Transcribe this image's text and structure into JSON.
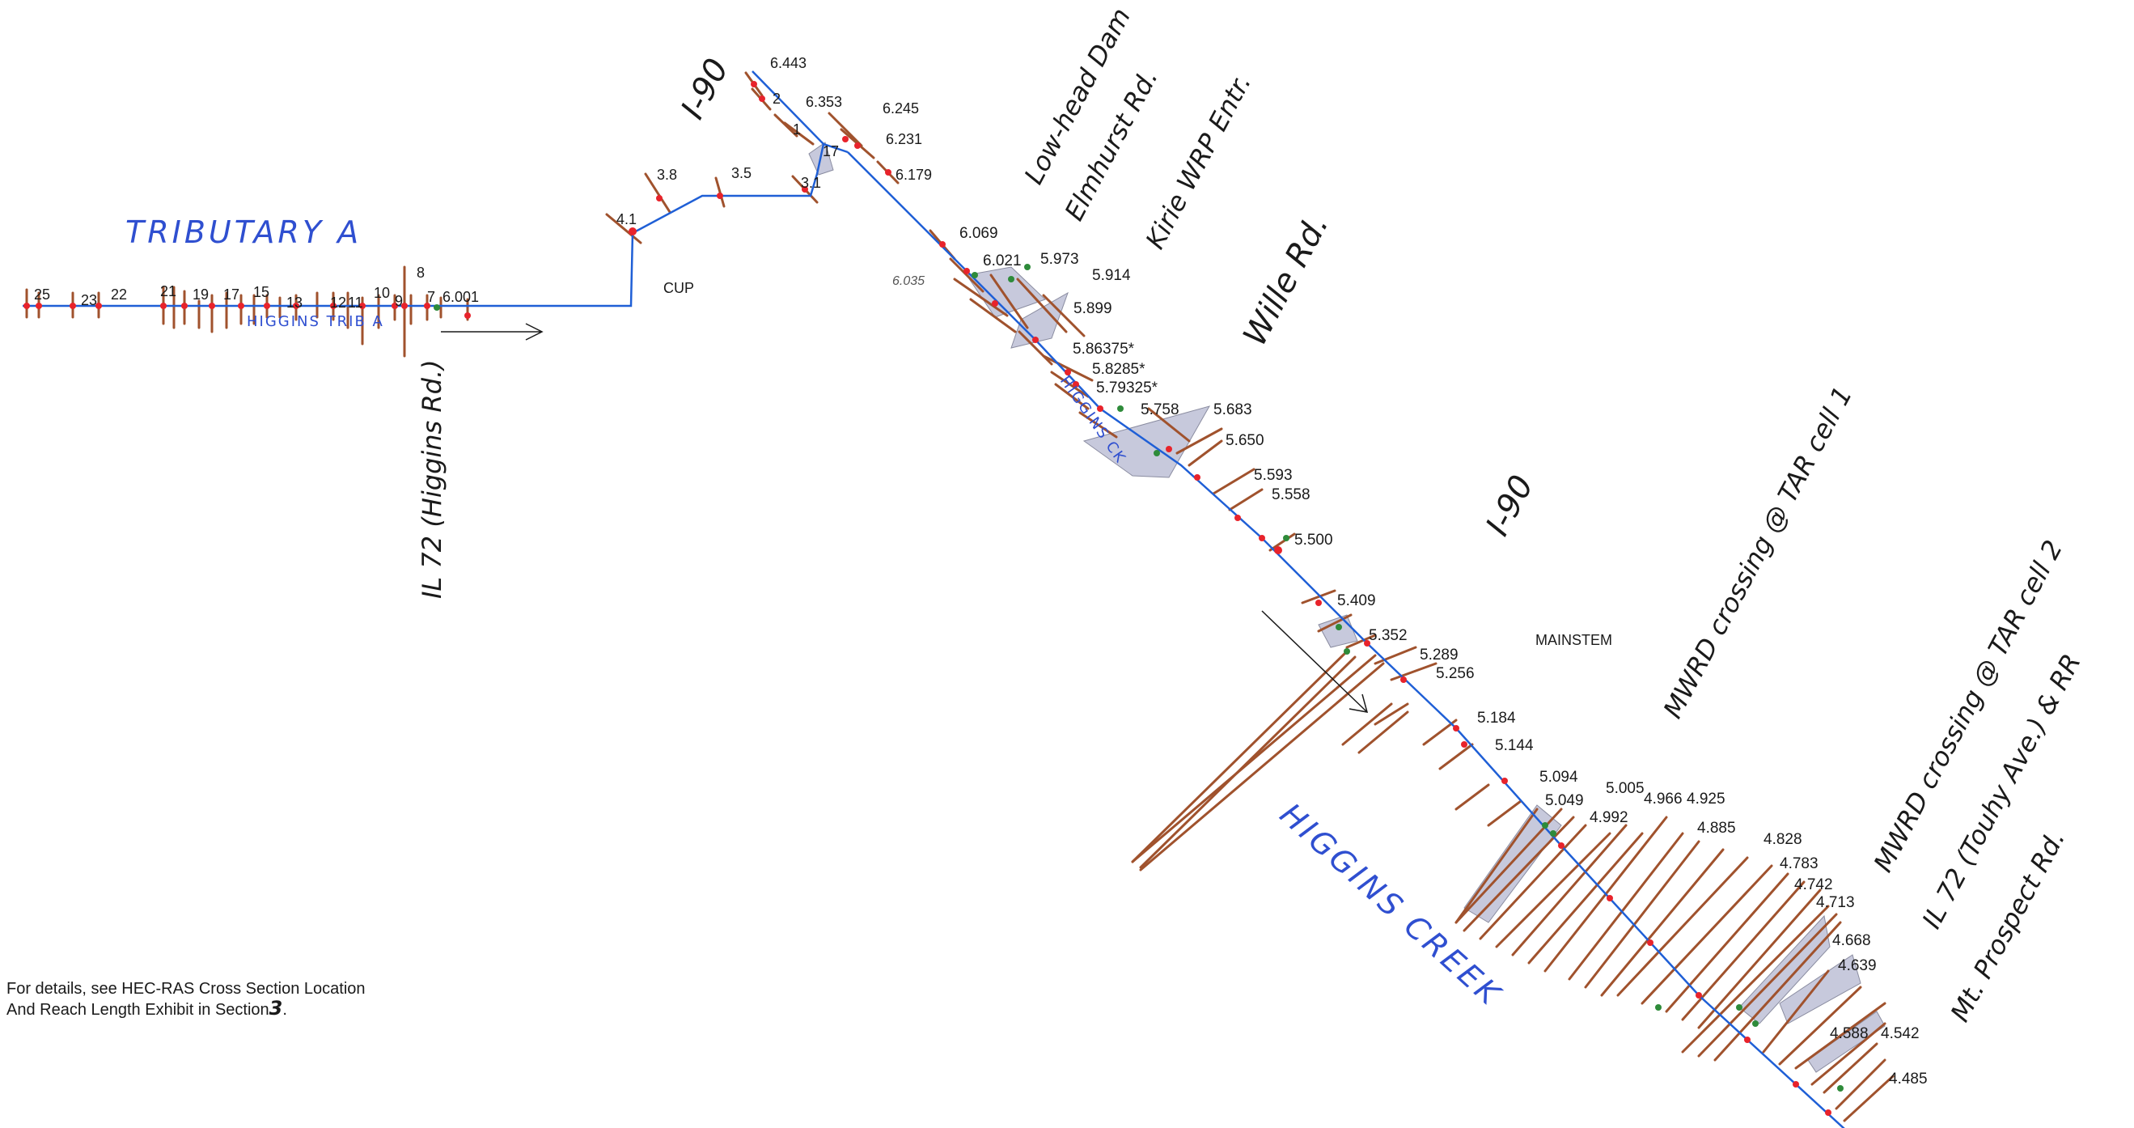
{
  "reaches": {
    "tributary_handwritten": "TRIBUTARY   A",
    "higgins_trib": "HIGGINS TRIB A",
    "higgins_ck": "HIGGINS CK",
    "higgins_creek_handwritten": "HIGGINS CREEK",
    "cup": "CUP",
    "mainstem": "MAINSTEM"
  },
  "crossings": {
    "il72_higgins": "IL 72 (Higgins Rd.)",
    "i90_upper": "I-90",
    "low_head_dam": "Low-head Dam",
    "elmhurst": "Elmhurst Rd.",
    "kirie": "Kirie WRP Entr.",
    "wille": "Wille Rd.",
    "i90_lower": "I-90",
    "mwrd1": "MWRD crossing @ TAR cell 1",
    "mwrd2": "MWRD crossing @ TAR cell 2",
    "il72_touhy": "IL 72 (Touhy Ave.) & RR",
    "mt_prospect": "Mt. Prospect Rd."
  },
  "trib_stations": [
    "25",
    "23",
    "22",
    "21",
    "19",
    "17",
    "15",
    "13",
    "12",
    "11",
    "10",
    "9",
    "8",
    "7",
    "6.001"
  ],
  "upper_stations": [
    "4.1",
    "3.8",
    "3.5",
    "3.1",
    "6.443",
    "2",
    "1",
    "6.353",
    "6.245",
    "17",
    "6.231",
    "6.179"
  ],
  "main_stations": [
    "6.069",
    "6.035",
    "6.021",
    "5.973",
    "5.914",
    "5.899",
    "5.86375*",
    "5.8285*",
    "5.79325*",
    "5.758",
    "5.683",
    "5.650",
    "5.593",
    "5.558",
    "5.500",
    "5.409",
    "5.352",
    "5.289",
    "5.256",
    "5.184",
    "5.144",
    "5.094",
    "5.049",
    "5.005",
    "4.992",
    "4.966",
    "4.925",
    "4.885",
    "4.828",
    "4.783",
    "4.742",
    "4.713",
    "4.668",
    "4.639",
    "4.588",
    "4.542",
    "4.485"
  ],
  "note": {
    "line1": "For details, see HEC-RAS Cross Section Location",
    "line2": "And Reach Length Exhibit in Section",
    "section": "3",
    "end": "."
  },
  "colors": {
    "channel": "#1f5fd6",
    "cross_section": "#a0522d",
    "node": "#e8232b",
    "structure_fill": "#c7c9dc",
    "green_marker": "#2e8b3a"
  }
}
